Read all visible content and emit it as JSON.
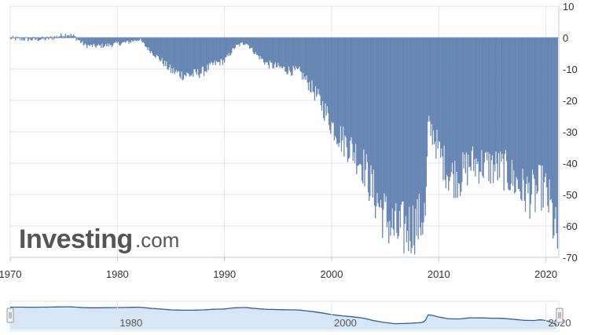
{
  "brand": {
    "logo_main": "Investing",
    "logo_suffix": ".com"
  },
  "colors": {
    "bar": "#6f8fbf",
    "bar_stroke": "#4d6f9f",
    "grid": "#e6e6e6",
    "navigator_fill": "#d7e6f6",
    "navigator_line": "#2f5f8f"
  },
  "chart_data": {
    "type": "bar",
    "title": "",
    "xlabel": "",
    "ylabel": "",
    "ylim": [
      -70,
      10
    ],
    "xlim": [
      1970,
      2021.2
    ],
    "y_axis_position": "right",
    "grid": true,
    "y_ticks": [
      "10",
      "0",
      "-10",
      "-20",
      "-30",
      "-40",
      "-50",
      "-60",
      "-70"
    ],
    "y_tick_values": [
      10,
      0,
      -10,
      -20,
      -30,
      -40,
      -50,
      -60,
      -70
    ],
    "x_ticks": [
      "1970",
      "1980",
      "1990",
      "2000",
      "2010",
      "2020"
    ],
    "x_tick_values": [
      1970,
      1980,
      1990,
      2000,
      2010,
      2020
    ],
    "frequency": "monthly",
    "series": [
      {
        "anchors": [
          [
            1970.0,
            -0.3
          ],
          [
            1972.0,
            -0.6
          ],
          [
            1973.5,
            -0.4
          ],
          [
            1974.5,
            0.3
          ],
          [
            1975.3,
            1.0
          ],
          [
            1976.0,
            0.2
          ],
          [
            1977.0,
            -2.5
          ],
          [
            1978.0,
            -2.8
          ],
          [
            1979.0,
            -2.5
          ],
          [
            1980.0,
            -2.0
          ],
          [
            1981.0,
            -1.5
          ],
          [
            1982.0,
            -0.5
          ],
          [
            1983.0,
            -4.0
          ],
          [
            1984.0,
            -7.0
          ],
          [
            1985.0,
            -10.5
          ],
          [
            1986.0,
            -12.0
          ],
          [
            1987.0,
            -12.0
          ],
          [
            1988.0,
            -11.0
          ],
          [
            1989.0,
            -8.5
          ],
          [
            1990.0,
            -7.5
          ],
          [
            1991.0,
            -3.0
          ],
          [
            1992.0,
            -1.5
          ],
          [
            1993.0,
            -5.5
          ],
          [
            1994.0,
            -8.5
          ],
          [
            1995.0,
            -9.5
          ],
          [
            1996.0,
            -10.5
          ],
          [
            1997.0,
            -11.0
          ],
          [
            1998.0,
            -15.5
          ],
          [
            1999.0,
            -21.0
          ],
          [
            2000.0,
            -28.0
          ],
          [
            2001.0,
            -33.0
          ],
          [
            2002.0,
            -36.5
          ],
          [
            2003.0,
            -41.5
          ],
          [
            2004.0,
            -51.0
          ],
          [
            2005.0,
            -58.0
          ],
          [
            2006.0,
            -63.0
          ],
          [
            2007.0,
            -62.0
          ],
          [
            2008.0,
            -60.0
          ],
          [
            2008.8,
            -57.0
          ],
          [
            2009.0,
            -29.0
          ],
          [
            2009.5,
            -31.0
          ],
          [
            2010.0,
            -37.0
          ],
          [
            2011.0,
            -44.5
          ],
          [
            2012.0,
            -45.0
          ],
          [
            2013.0,
            -40.5
          ],
          [
            2014.0,
            -41.0
          ],
          [
            2015.0,
            -42.0
          ],
          [
            2016.0,
            -42.5
          ],
          [
            2017.0,
            -46.0
          ],
          [
            2018.0,
            -50.0
          ],
          [
            2019.0,
            -51.0
          ],
          [
            2019.5,
            -48.0
          ],
          [
            2020.0,
            -50.0
          ],
          [
            2020.5,
            -56.0
          ],
          [
            2021.0,
            -66.0
          ]
        ],
        "amplitude_note": "monthly values oscillate around these anchor levels"
      }
    ],
    "navigator": {
      "x_ticks": [
        "1980",
        "2000",
        "2020"
      ],
      "x_tick_values": [
        1980,
        2000,
        2020
      ]
    }
  }
}
